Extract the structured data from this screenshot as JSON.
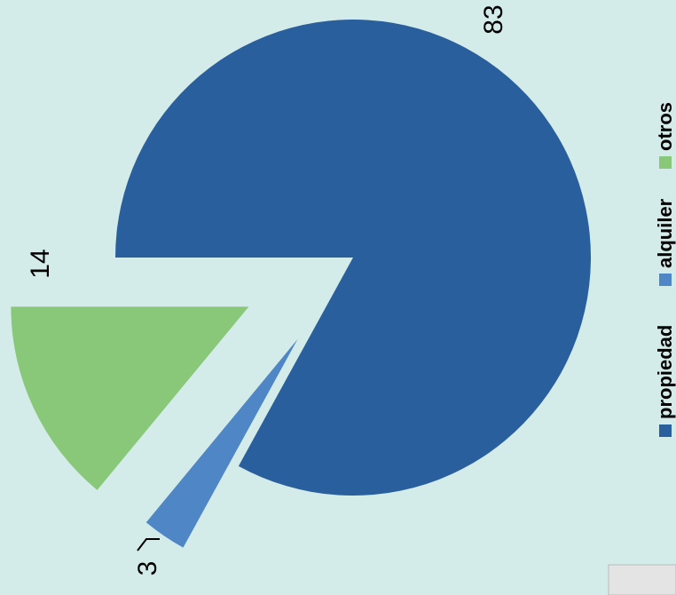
{
  "chart_data": {
    "type": "pie",
    "categories": [
      "propiedad",
      "alquiler",
      "otros"
    ],
    "values": [
      83,
      3,
      14
    ],
    "colors": [
      "#2a5f9e",
      "#4f86c6",
      "#88c878"
    ],
    "legend": "right"
  }
}
